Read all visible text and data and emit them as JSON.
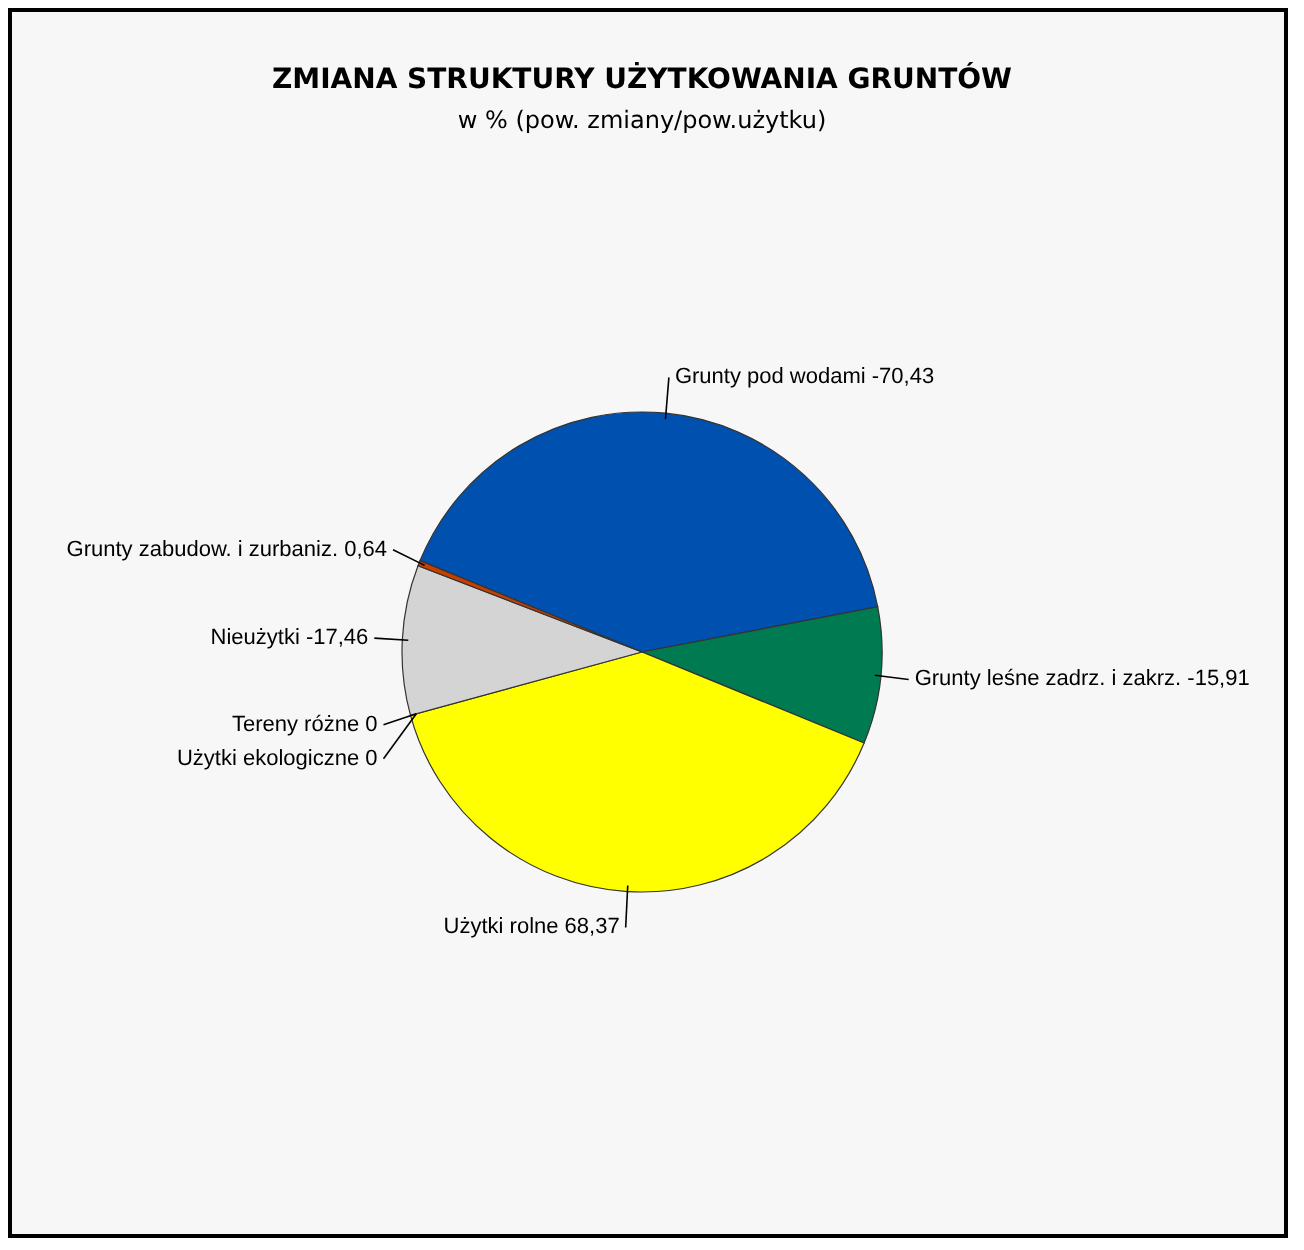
{
  "chart_data": {
    "type": "pie",
    "title": "ZMIANA STRUKTURY UŻYTKOWANIA GRUNTÓW",
    "subtitle": "w % (pow. zmiany/pow.użytku)",
    "categories": [
      "Grunty pod wodami -70,43",
      "Grunty leśne zadrz. i zakrz. -15,91",
      "Użytki rolne 68,37",
      "Użytki ekologiczne 0",
      "Tereny różne 0",
      "Nieużytki -17,46",
      "Grunty zabudow. i zurbaniz. 0,64"
    ],
    "values": [
      40.76,
      9.21,
      39.56,
      0,
      0,
      10.1,
      0.37
    ],
    "colors": [
      "#0050b0",
      "#007a50",
      "#ffff00",
      "#40f0c0",
      "#7a3a3a",
      "#d4d4d4",
      "#c84000"
    ]
  }
}
